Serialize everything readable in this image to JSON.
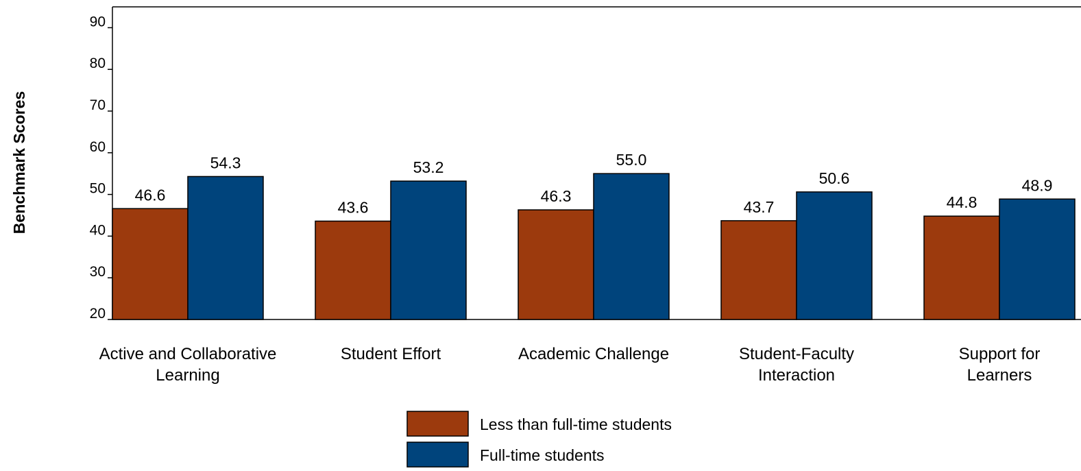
{
  "chart_data": {
    "type": "bar",
    "title": "",
    "xlabel": "",
    "ylabel": "Benchmark Scores",
    "ylim": [
      20,
      95
    ],
    "yticks": [
      20,
      30,
      40,
      50,
      60,
      70,
      80,
      90
    ],
    "grid": false,
    "legend_position": "bottom-center",
    "categories": [
      [
        "Active and Collaborative",
        "Learning"
      ],
      [
        "Student Effort"
      ],
      [
        "Academic Challenge"
      ],
      [
        "Student-Faculty",
        "Interaction"
      ],
      [
        "Support for",
        "Learners"
      ]
    ],
    "series": [
      {
        "name": "Less than full-time students",
        "color": "#9C3A0D",
        "values": [
          46.6,
          43.6,
          46.3,
          43.7,
          44.8
        ],
        "labels": [
          "46.6",
          "43.6",
          "46.3",
          "43.7",
          "44.8"
        ]
      },
      {
        "name": "Full-time students",
        "color": "#00447C",
        "values": [
          54.3,
          53.2,
          55.0,
          50.6,
          48.9
        ],
        "labels": [
          "54.3",
          "53.2",
          "55.0",
          "50.6",
          "48.9"
        ]
      }
    ]
  }
}
